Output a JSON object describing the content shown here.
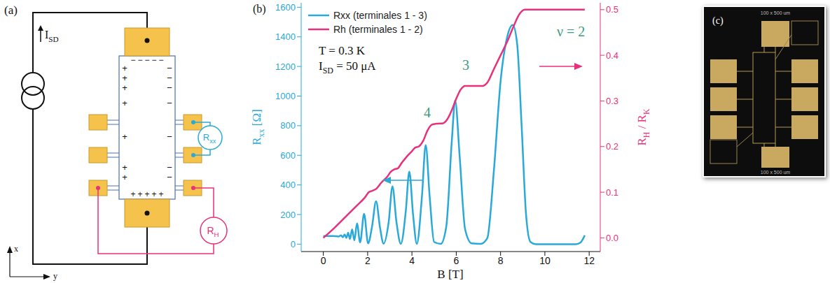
{
  "panel_a": {
    "letter": "(a)",
    "source_label": [
      "I",
      "SD"
    ],
    "rxx_label": [
      "R",
      "xx"
    ],
    "rh_label": [
      "R",
      "H"
    ],
    "axis_x": "x",
    "axis_y": "y",
    "charges": {
      "positive": "+",
      "negative": "−"
    }
  },
  "chart_data": {
    "type": "line",
    "letter": "(b)",
    "xlabel": [
      "B [T]"
    ],
    "ylabel": [
      "R",
      "xx",
      " [Ω]"
    ],
    "y2label": [
      "R",
      "H",
      " / R",
      "K"
    ],
    "xlim": [
      -1,
      12.5
    ],
    "xticks": [
      0,
      2,
      4,
      6,
      8,
      10,
      12
    ],
    "ylim": [
      -50,
      1630
    ],
    "yticks": [
      0,
      200,
      400,
      600,
      800,
      1000,
      1200,
      1400,
      1600
    ],
    "y2lim": [
      -0.03,
      0.515
    ],
    "y2ticks": [
      {
        "value": 0,
        "label": "0.0"
      },
      0.1,
      0.2,
      0.3,
      0.4,
      0.5
    ],
    "legend": "upper left",
    "annotations": [
      [
        "T = 0.3 K"
      ],
      [
        "I",
        "SD",
        " = 50 μA"
      ]
    ],
    "plateau_labels": [
      "ν = 2",
      "3",
      "4"
    ],
    "series": [
      {
        "name": "Rxx (terminales 1 - 3)",
        "color": "#29a9d9",
        "axis": "y",
        "x": [
          0,
          0.4,
          0.7,
          0.8,
          0.88,
          0.96,
          1.04,
          1.12,
          1.2,
          1.3,
          1.4,
          1.52,
          1.66,
          1.84,
          2.02,
          2.2,
          2.38,
          2.56,
          2.72,
          2.95,
          3.12,
          3.3,
          3.5,
          3.72,
          3.88,
          4.05,
          4.22,
          4.45,
          4.62,
          4.8,
          5.0,
          5.3,
          5.55,
          5.8,
          5.95,
          6.15,
          6.4,
          6.7,
          7.1,
          7.4,
          7.7,
          8.0,
          8.3,
          8.55,
          8.75,
          8.95,
          9.15,
          9.35,
          9.6,
          11.4,
          11.6,
          11.8
        ],
        "values": [
          55,
          55,
          52,
          60,
          47,
          66,
          42,
          78,
          35,
          100,
          25,
          140,
          12,
          205,
          5,
          120,
          290,
          110,
          3,
          150,
          390,
          150,
          2,
          220,
          490,
          200,
          2,
          320,
          670,
          320,
          15,
          2,
          120,
          700,
          970,
          600,
          100,
          5,
          2,
          40,
          500,
          1100,
          1400,
          1480,
          1350,
          800,
          200,
          15,
          0,
          0,
          10,
          60
        ]
      },
      {
        "name": "Rh (terminales 1 - 2)",
        "color": "#e8317a",
        "axis": "y2",
        "x": [
          0,
          0.5,
          1,
          1.5,
          1.9,
          2.05,
          2.2,
          2.4,
          2.6,
          2.9,
          3.05,
          3.2,
          3.35,
          3.55,
          3.8,
          4.0,
          4.15,
          4.3,
          4.5,
          4.7,
          4.9,
          5.1,
          5.4,
          5.6,
          5.8,
          6.0,
          6.2,
          6.4,
          7.2,
          7.4,
          7.7,
          8.0,
          8.3,
          8.6,
          8.85,
          9.1,
          11.8
        ],
        "values": [
          0,
          0.022,
          0.046,
          0.07,
          0.09,
          0.1,
          0.103,
          0.108,
          0.12,
          0.135,
          0.145,
          0.15,
          0.152,
          0.165,
          0.18,
          0.19,
          0.198,
          0.2,
          0.212,
          0.235,
          0.248,
          0.25,
          0.251,
          0.26,
          0.28,
          0.305,
          0.325,
          0.333,
          0.333,
          0.34,
          0.37,
          0.4,
          0.43,
          0.465,
          0.49,
          0.5,
          0.5
        ]
      }
    ]
  },
  "panel_c": {
    "letter": "(c)",
    "scale_labels": [
      "100 x 500 um",
      "100 x 500 um"
    ]
  }
}
